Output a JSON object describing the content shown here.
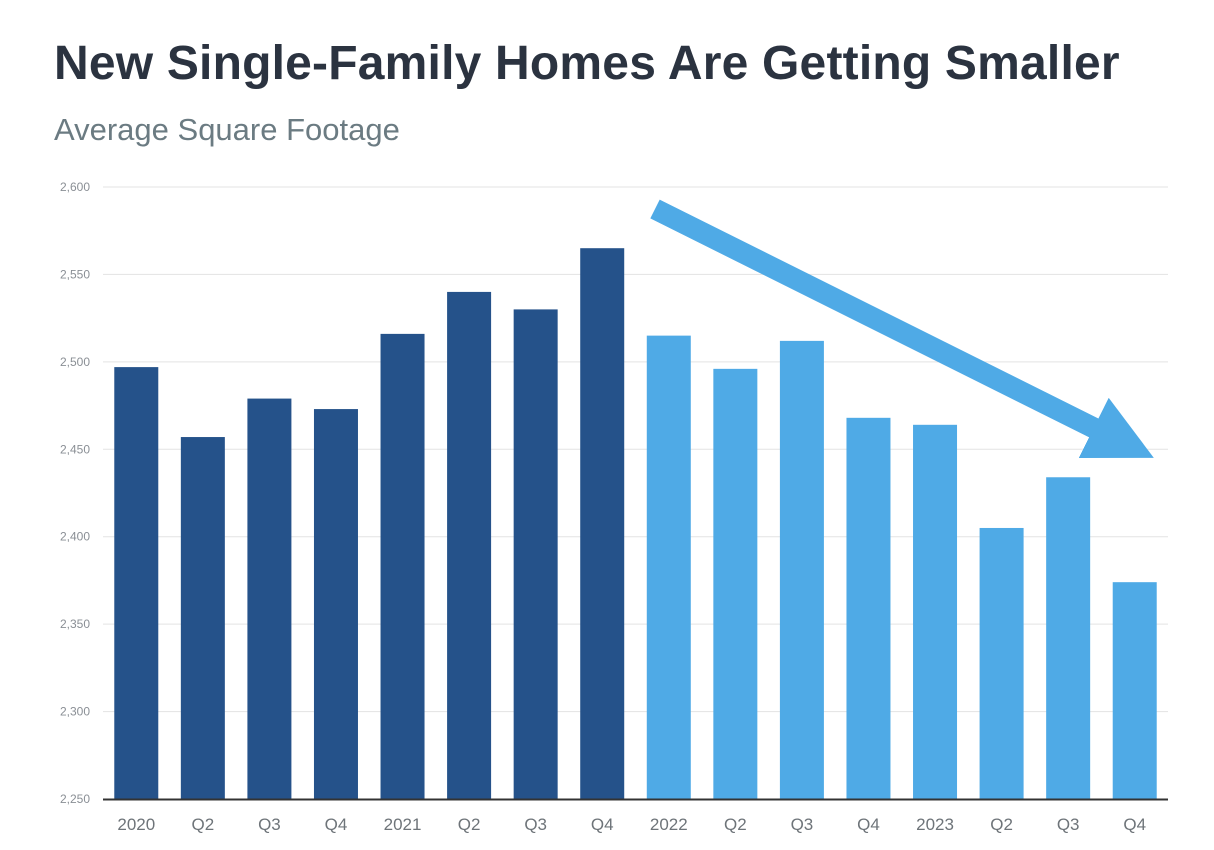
{
  "colors": {
    "dark_bar": "#25528a",
    "light_bar": "#4faae6",
    "arrow": "#4faae6",
    "grid": "#e3e3e3",
    "axis": "#333333"
  },
  "chart_data": {
    "type": "bar",
    "title": "New Single-Family Homes Are Getting Smaller",
    "subtitle": "Average Square Footage",
    "xlabel": "",
    "ylabel": "",
    "ylim": [
      2250,
      2600
    ],
    "yticks": [
      2250,
      2300,
      2350,
      2400,
      2450,
      2500,
      2550,
      2600
    ],
    "ytick_labels": [
      "2,250",
      "2,300",
      "2,350",
      "2,400",
      "2,450",
      "2,500",
      "2,550",
      "2,600"
    ],
    "grid": true,
    "categories": [
      "2020",
      "Q2",
      "Q3",
      "Q4",
      "2021",
      "Q2",
      "Q3",
      "Q4",
      "2022",
      "Q2",
      "Q3",
      "Q4",
      "2023",
      "Q2",
      "Q3",
      "Q4"
    ],
    "values": [
      2497,
      2457,
      2479,
      2473,
      2516,
      2540,
      2530,
      2565,
      2515,
      2496,
      2512,
      2468,
      2464,
      2405,
      2434,
      2374
    ],
    "bar_color_groups": [
      "dark",
      "dark",
      "dark",
      "dark",
      "dark",
      "dark",
      "dark",
      "dark",
      "light",
      "light",
      "light",
      "light",
      "light",
      "light",
      "light",
      "light"
    ],
    "annotation": "downward-trend-arrow"
  }
}
